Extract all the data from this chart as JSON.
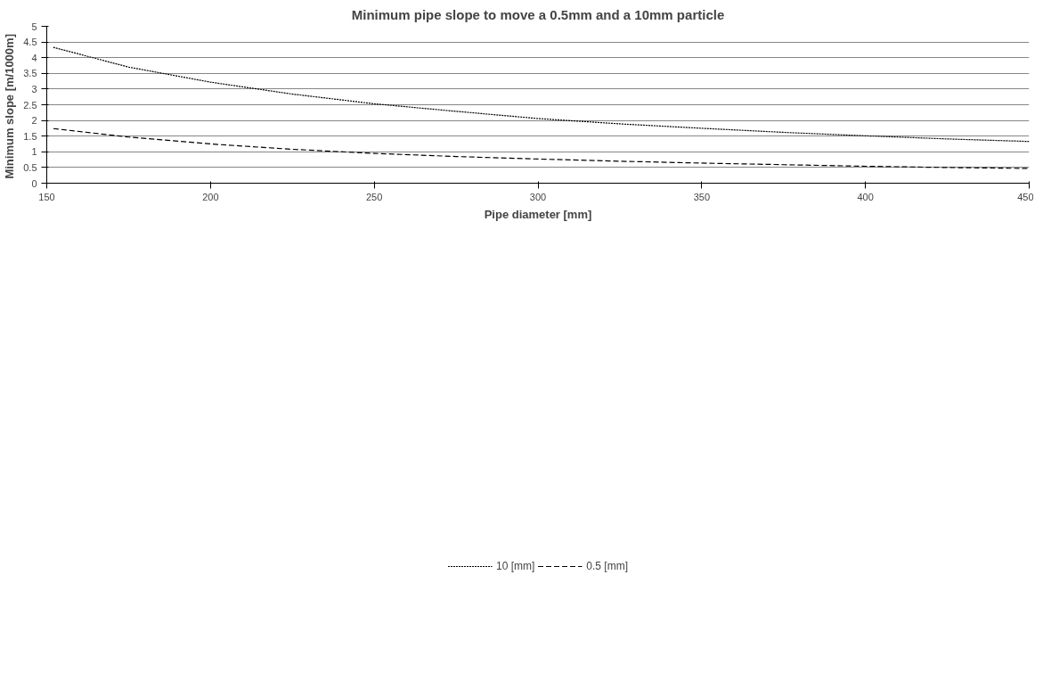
{
  "chart_data": {
    "type": "line",
    "title": "Minimum pipe slope to move a 0.5mm and a 10mm particle",
    "xlabel": "Pipe diameter [mm]",
    "ylabel": "Minimum slope  [m/1000m]",
    "x": [
      152,
      175,
      200,
      225,
      250,
      275,
      300,
      325,
      350,
      375,
      400,
      425,
      450
    ],
    "series": [
      {
        "name": "10 [mm]",
        "color": "#000000",
        "line_style": "dotted",
        "values": [
          4.33,
          3.7,
          3.22,
          2.84,
          2.53,
          2.29,
          2.06,
          1.89,
          1.75,
          1.62,
          1.51,
          1.41,
          1.33
        ]
      },
      {
        "name": "0.5 [mm]",
        "color": "#000000",
        "line_style": "dashed",
        "values": [
          1.74,
          1.47,
          1.25,
          1.08,
          0.95,
          0.85,
          0.77,
          0.7,
          0.64,
          0.59,
          0.54,
          0.5,
          0.47
        ]
      }
    ],
    "xlim": [
      150,
      450
    ],
    "xticks": [
      150,
      200,
      250,
      300,
      350,
      400,
      450
    ],
    "ylim": [
      0,
      5
    ],
    "yticks": [
      0,
      0.5,
      1,
      1.5,
      2,
      2.5,
      3,
      3.5,
      4,
      4.5,
      5
    ],
    "grid": "y",
    "legend": "bottom",
    "marker": "none"
  }
}
